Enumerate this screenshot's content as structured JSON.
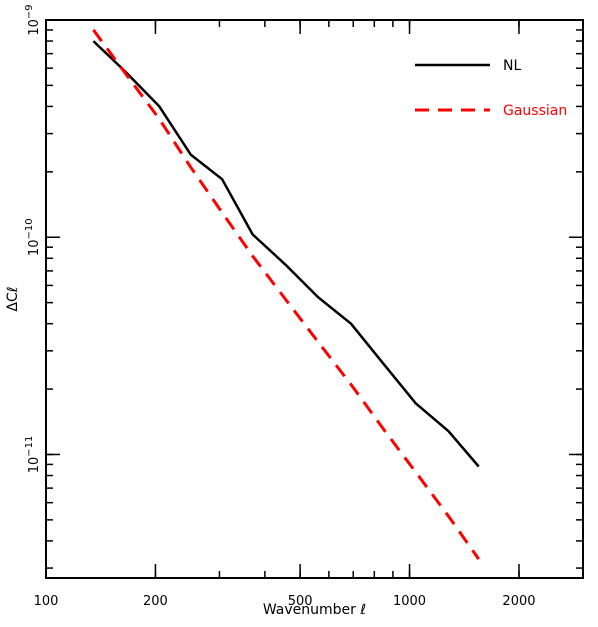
{
  "chart_data": {
    "type": "line",
    "xlabel": "Wavenumber ℓ",
    "ylabel": "ΔCℓ",
    "xscale": "log",
    "yscale": "log",
    "xlim": [
      100,
      3000
    ],
    "ylim": [
      2.7e-12,
      1e-09
    ],
    "grid": false,
    "legend_position": "top-right",
    "x_ticks": [
      {
        "value": 100,
        "label": "100"
      },
      {
        "value": 200,
        "label": "200"
      },
      {
        "value": 500,
        "label": "500"
      },
      {
        "value": 1000,
        "label": "1000"
      },
      {
        "value": 2000,
        "label": "2000"
      }
    ],
    "y_ticks": [
      {
        "value": 1e-11,
        "base": "10",
        "exp": "−11"
      },
      {
        "value": 1e-10,
        "base": "10",
        "exp": "−10"
      },
      {
        "value": 1e-09,
        "base": "10",
        "exp": "−9"
      }
    ],
    "series": [
      {
        "name": "NL",
        "color": "#000000",
        "style": "solid",
        "x": [
          135,
          165,
          205,
          250,
          305,
          370,
          455,
          560,
          690,
          850,
          1040,
          1280,
          1550
        ],
        "y": [
          8e-10,
          5.8e-10,
          4e-10,
          2.4e-10,
          1.85e-10,
          1.03e-10,
          7.5e-11,
          5.3e-11,
          4e-11,
          2.6e-11,
          1.72e-11,
          1.28e-11,
          8.8e-12
        ]
      },
      {
        "name": "Gaussian",
        "color": "#ff0000",
        "style": "dashed",
        "x": [
          135,
          165,
          205,
          250,
          305,
          370,
          455,
          560,
          690,
          850,
          1040,
          1280,
          1550
        ],
        "y": [
          9e-10,
          5.7e-10,
          3.5e-10,
          2.1e-10,
          1.3e-10,
          8.2e-11,
          5.2e-11,
          3.3e-11,
          2.1e-11,
          1.3e-11,
          8.3e-12,
          5.2e-12,
          3.3e-12
        ]
      }
    ]
  }
}
